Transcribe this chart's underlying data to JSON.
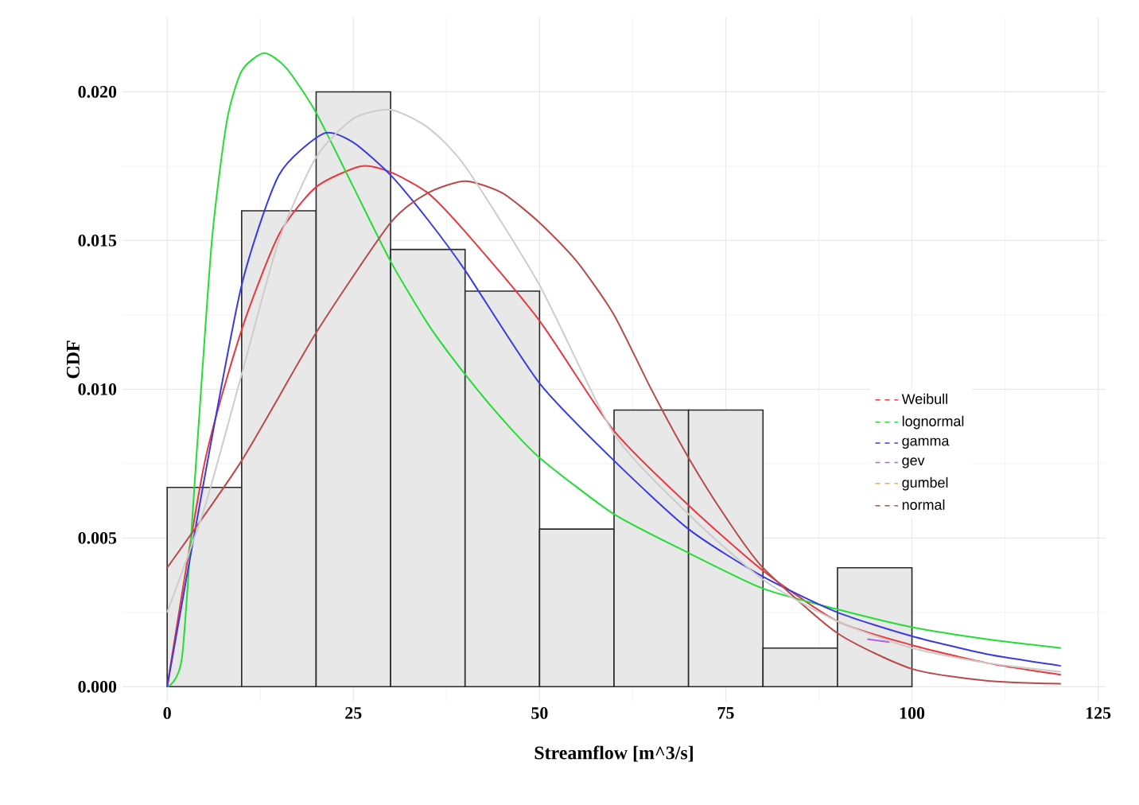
{
  "chart_data": {
    "type": "histogram",
    "xlabel": "Streamflow [m^3/s]",
    "ylabel": "CDF",
    "bins": [
      0,
      10,
      20,
      30,
      40,
      50,
      60,
      70,
      80,
      90,
      100
    ],
    "values": [
      0.0067,
      0.016,
      0.02,
      0.0147,
      0.0133,
      0.0053,
      0.0093,
      0.0093,
      0.0013,
      0.004
    ],
    "color": "#e8e8e8",
    "xlim": [
      -6,
      126
    ],
    "ylim": [
      -0.0005,
      0.0225
    ],
    "xticks": [
      0,
      25,
      50,
      75,
      100,
      125
    ],
    "yticks": [
      {
        "value": 0,
        "label": "0.000"
      },
      {
        "value": 0.005,
        "label": "0.005"
      },
      {
        "value": 0.01,
        "label": "0.010"
      },
      {
        "value": 0.015,
        "label": "0.015"
      },
      {
        "value": 0.02,
        "label": "0.020"
      }
    ],
    "grid": true,
    "legend": "right",
    "line_style": "solid",
    "marker": "none",
    "series": [
      {
        "name": "Weibull",
        "type": "line",
        "color": "#e8383d",
        "x": [
          0,
          5,
          10,
          15,
          20,
          26,
          30,
          35,
          40,
          50,
          60,
          70,
          80,
          90,
          100,
          110,
          120
        ],
        "values": [
          0,
          0.0075,
          0.012,
          0.0152,
          0.0168,
          0.0175,
          0.0173,
          0.0166,
          0.0153,
          0.0123,
          0.0086,
          0.0061,
          0.0039,
          0.0022,
          0.0014,
          0.0008,
          0.0004
        ]
      },
      {
        "name": "lognormal",
        "type": "line",
        "color": "#22dd33",
        "x": [
          0,
          2,
          4,
          6,
          8,
          10,
          13,
          16,
          20,
          25,
          30,
          35,
          40,
          45,
          50,
          60,
          70,
          80,
          90,
          100,
          110,
          120
        ],
        "values": [
          0,
          0.001,
          0.008,
          0.015,
          0.019,
          0.0207,
          0.0213,
          0.0208,
          0.0193,
          0.0168,
          0.0143,
          0.0122,
          0.0105,
          0.009,
          0.0077,
          0.0058,
          0.0045,
          0.0033,
          0.0026,
          0.002,
          0.0016,
          0.0013
        ]
      },
      {
        "name": "gamma",
        "type": "line",
        "color": "#3a3ae0",
        "x": [
          0,
          5,
          10,
          15,
          21,
          25,
          30,
          35,
          40,
          50,
          60,
          70,
          80,
          90,
          100,
          110,
          120
        ],
        "values": [
          0,
          0.007,
          0.0135,
          0.0172,
          0.0186,
          0.0183,
          0.0172,
          0.0157,
          0.014,
          0.0102,
          0.0076,
          0.0053,
          0.0037,
          0.0025,
          0.0017,
          0.0011,
          0.0007
        ]
      },
      {
        "name": "gev",
        "type": "line",
        "color": "#b060e0",
        "x": [
          94,
          97
        ],
        "values": [
          0.0016,
          0.0015
        ]
      },
      {
        "name": "gumbel",
        "type": "line",
        "color": "#f0b020"
      },
      {
        "name": "normal",
        "type": "line",
        "color": "#b84a4a",
        "x": [
          0,
          10,
          20,
          30,
          35,
          40,
          45,
          50,
          55,
          60,
          65,
          70,
          75,
          80,
          90,
          100,
          110,
          120
        ],
        "values": [
          0.004,
          0.0076,
          0.0119,
          0.0156,
          0.0166,
          0.017,
          0.0166,
          0.0156,
          0.0143,
          0.0125,
          0.01,
          0.0077,
          0.0057,
          0.004,
          0.0018,
          0.0006,
          0.0002,
          0.0001
        ]
      },
      {
        "type": "line",
        "color": "#cccccc",
        "x": [
          0,
          5,
          10,
          15,
          20,
          25,
          30,
          35,
          40,
          50,
          60,
          70,
          80,
          90,
          100,
          110,
          120
        ],
        "values": [
          0.0025,
          0.006,
          0.0105,
          0.015,
          0.0178,
          0.0191,
          0.0194,
          0.0188,
          0.0175,
          0.0135,
          0.0085,
          0.0058,
          0.0036,
          0.0022,
          0.0013,
          0.0008,
          0.0005
        ]
      }
    ]
  }
}
